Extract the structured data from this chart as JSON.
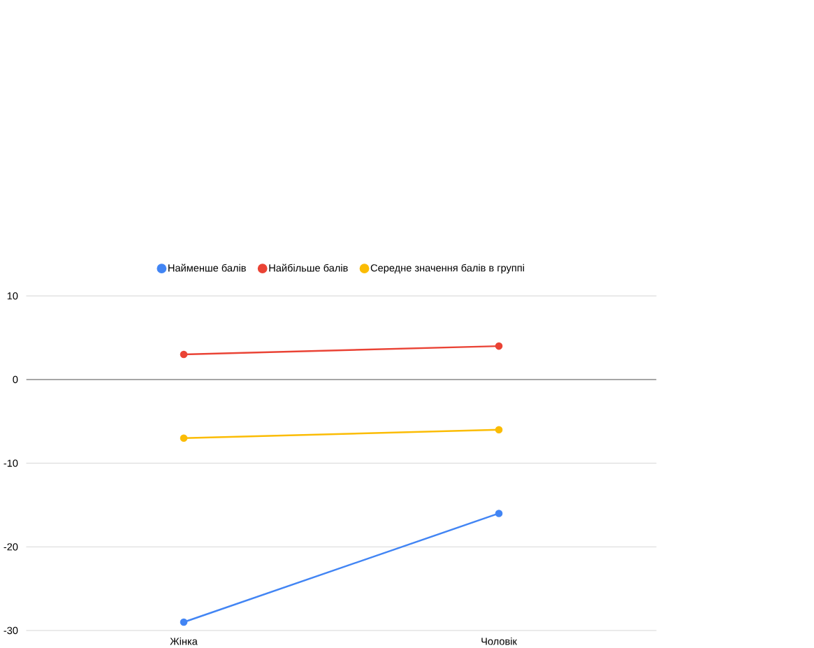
{
  "chart_data": {
    "type": "line",
    "categories": [
      "Жінка",
      "Чоловік"
    ],
    "series": [
      {
        "name": "Найменше балів",
        "color": "#4285f4",
        "values": [
          -29,
          -16
        ]
      },
      {
        "name": "Найбільше балів",
        "color": "#ea4335",
        "values": [
          3,
          4
        ]
      },
      {
        "name": "Середне значення балів в группі",
        "color": "#fbbc04",
        "values": [
          -7,
          -6
        ]
      }
    ],
    "ylim": [
      -30,
      10
    ],
    "yticks": [
      -30,
      -20,
      -10,
      0,
      10
    ],
    "grid": "y",
    "legend": "top",
    "marker": "circle",
    "ref_lines": [
      {
        "axis": "y",
        "value": 0,
        "color": "#333333"
      }
    ]
  }
}
